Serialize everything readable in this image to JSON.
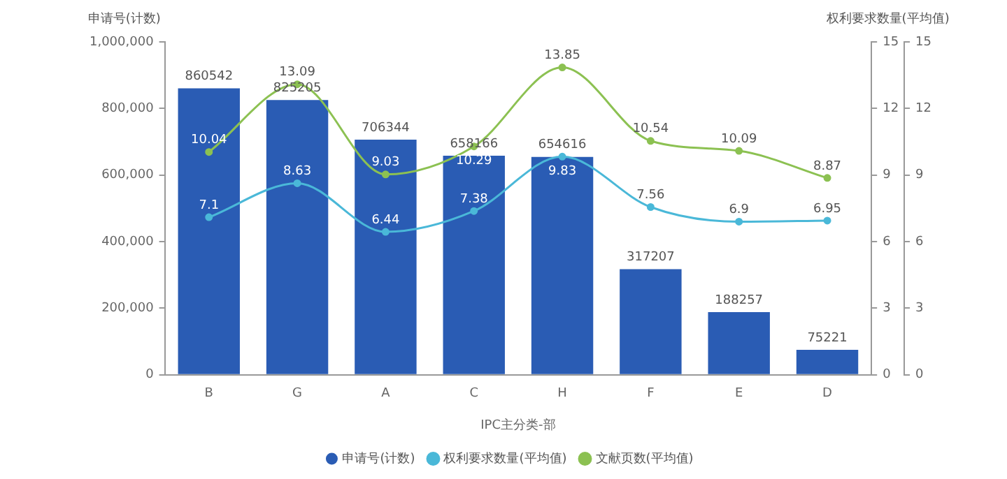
{
  "chart_data": {
    "type": "bar",
    "xlabel": "IPC主分类-部",
    "ylabel": "申请号(计数)",
    "y2label": "权利要求数量(平均值)",
    "categories": [
      "B",
      "G",
      "A",
      "C",
      "H",
      "F",
      "E",
      "D"
    ],
    "series": [
      {
        "name": "申请号(计数)",
        "color": "#2a5cb4",
        "values": [
          860542,
          825205,
          706344,
          658166,
          654616,
          317207,
          188257,
          75221
        ]
      },
      {
        "name": "权利要求数量(平均值)",
        "type": "line",
        "axis": "y2",
        "color": "#4ab8d8",
        "values": [
          7.1,
          8.63,
          6.44,
          7.38,
          9.83,
          7.56,
          6.9,
          6.95
        ]
      },
      {
        "name": "文献页数(平均值)",
        "type": "line",
        "axis": "y3",
        "color": "#8cc152",
        "values": [
          10.04,
          13.09,
          9.03,
          10.29,
          13.85,
          10.54,
          10.09,
          8.87
        ]
      }
    ],
    "ylim": [
      0,
      1000000
    ],
    "yticks": [
      0,
      {
        "value": 200000,
        "label": "200,000"
      },
      {
        "value": 400000,
        "label": "400,000"
      },
      {
        "value": 600000,
        "label": "600,000"
      },
      {
        "value": 800000,
        "label": "800,000"
      },
      {
        "value": 1000000,
        "label": "1,000,000"
      }
    ],
    "y2lim": [
      0,
      15
    ],
    "y2ticks": [
      0,
      3,
      6,
      9,
      12,
      15
    ],
    "y3lim": [
      0,
      15
    ],
    "y3ticks": [
      0,
      3,
      6,
      9,
      12,
      15
    ],
    "grid": false,
    "legend": "bottom",
    "marker": "circle",
    "data_labels": true
  }
}
